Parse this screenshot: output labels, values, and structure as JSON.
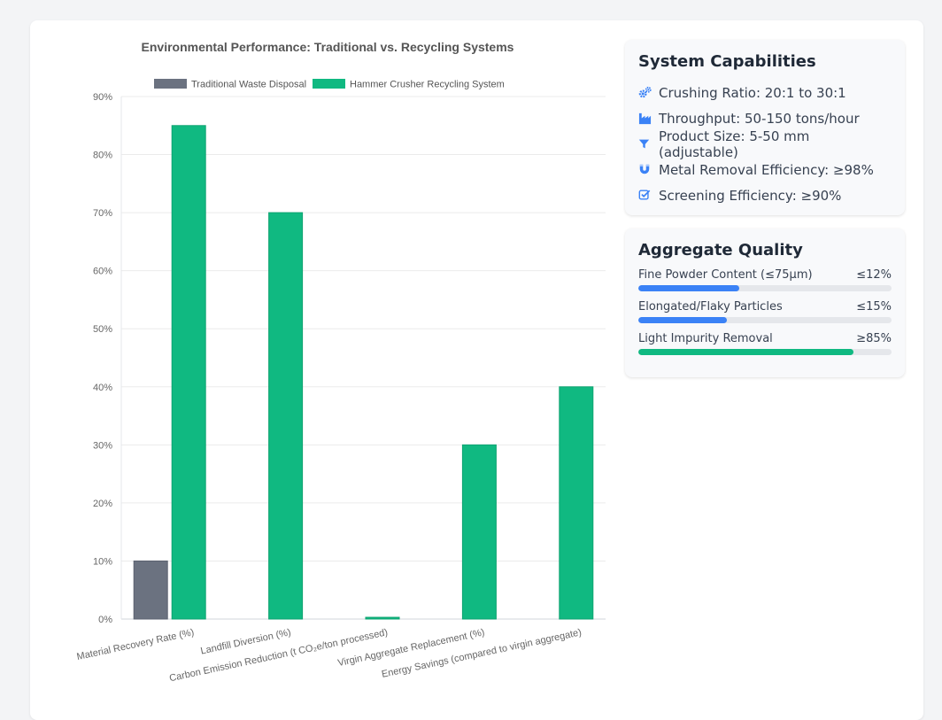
{
  "chart_data": {
    "type": "bar",
    "title": "Environmental Performance: Traditional vs. Recycling Systems",
    "categories": [
      "Material Recovery Rate (%)",
      "Landfill Diversion (%)",
      "Carbon Emission Reduction (t CO₂e/ton processed)",
      "Virgin Aggregate Replacement (%)",
      "Energy Savings (compared to virgin aggregate)"
    ],
    "series": [
      {
        "name": "Traditional Waste Disposal",
        "color": "#6b7280",
        "values": [
          10,
          0,
          0,
          0,
          0
        ]
      },
      {
        "name": "Hammer Crusher Recycling System",
        "color": "#10b981",
        "values": [
          85,
          70,
          0.3,
          30,
          40
        ]
      }
    ],
    "yticks": [
      "0%",
      "10%",
      "20%",
      "30%",
      "40%",
      "50%",
      "60%",
      "70%",
      "80%",
      "90%"
    ],
    "ylim": [
      0,
      90
    ],
    "legend_position": "top",
    "grid": true
  },
  "capabilities": {
    "title": "System Capabilities",
    "items": [
      {
        "icon": "cogs-icon",
        "label": "Crushing Ratio: 20:1 to 30:1"
      },
      {
        "icon": "industry-icon",
        "label": "Throughput: 50-150 tons/hour"
      },
      {
        "icon": "filter-icon",
        "label": "Product Size: 5-50 mm (adjustable)"
      },
      {
        "icon": "magnet-icon",
        "label": "Metal Removal Efficiency: ≥98%"
      },
      {
        "icon": "check-square-icon",
        "label": "Screening Efficiency: ≥90%"
      }
    ],
    "icon_color": "#3b82f6"
  },
  "quality": {
    "title": "Aggregate Quality",
    "items": [
      {
        "label": "Fine Powder Content (≤75μm)",
        "value": "≤12%",
        "fill_pct": 40,
        "color": "#3b82f6"
      },
      {
        "label": "Elongated/Flaky Particles",
        "value": "≤15%",
        "fill_pct": 35,
        "color": "#3b82f6"
      },
      {
        "label": "Light Impurity Removal",
        "value": "≥85%",
        "fill_pct": 85,
        "color": "#10b981"
      }
    ]
  }
}
